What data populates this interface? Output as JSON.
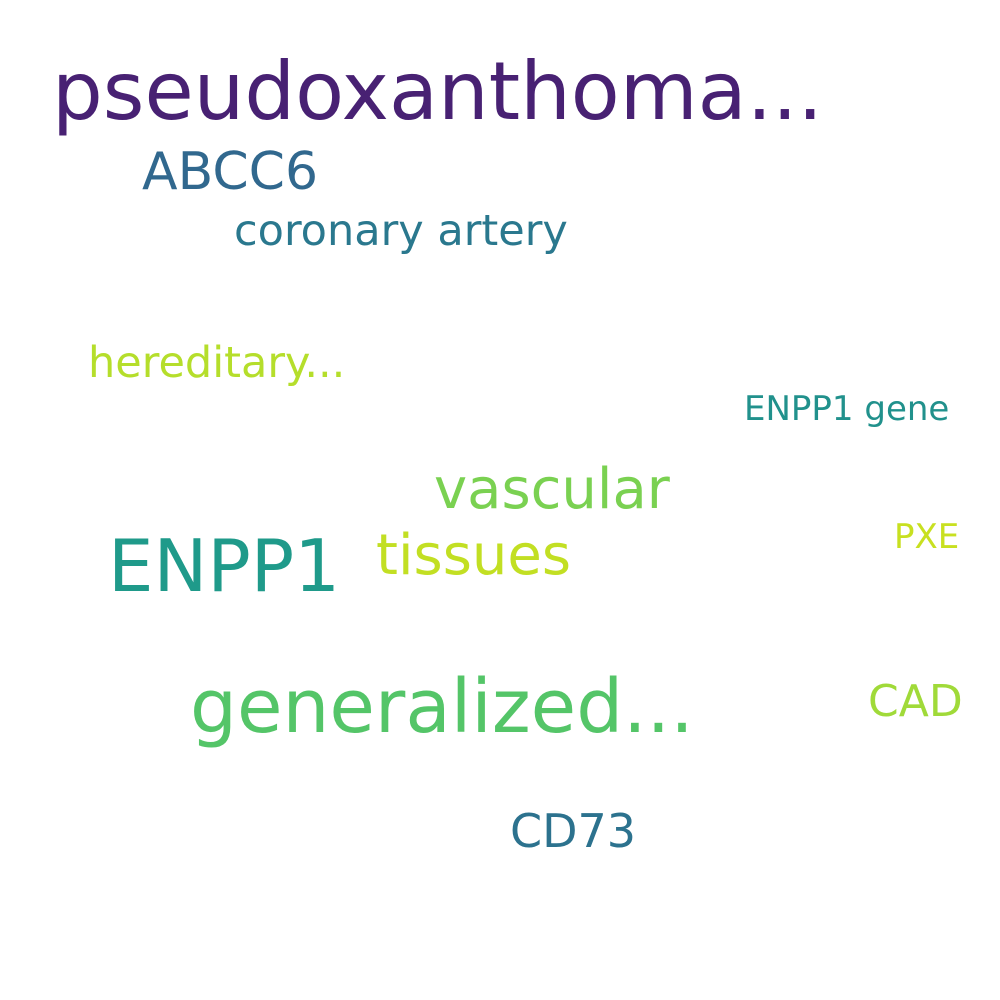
{
  "words": [
    {
      "id": "pseudoxanthoma",
      "text": "pseudoxanthoma...",
      "color": "#482173"
    },
    {
      "id": "abcc6",
      "text": "ABCC6",
      "color": "#31688e"
    },
    {
      "id": "coronary",
      "text": "coronary artery",
      "color": "#2a788e"
    },
    {
      "id": "hereditary",
      "text": "hereditary...",
      "color": "#b5de2b"
    },
    {
      "id": "enpp1gene",
      "text": "ENPP1 gene",
      "color": "#21918c"
    },
    {
      "id": "vascular",
      "text": "vascular",
      "color": "#7ad151"
    },
    {
      "id": "enpp1",
      "text": "ENPP1",
      "color": "#1f9a8a"
    },
    {
      "id": "tissues",
      "text": "tissues",
      "color": "#c2df23"
    },
    {
      "id": "pxe",
      "text": "PXE",
      "color": "#c8e020"
    },
    {
      "id": "generalized",
      "text": "generalized...",
      "color": "#54c568"
    },
    {
      "id": "cad",
      "text": "CAD",
      "color": "#a0da39"
    },
    {
      "id": "cd73",
      "text": "CD73",
      "color": "#2c728e"
    }
  ]
}
